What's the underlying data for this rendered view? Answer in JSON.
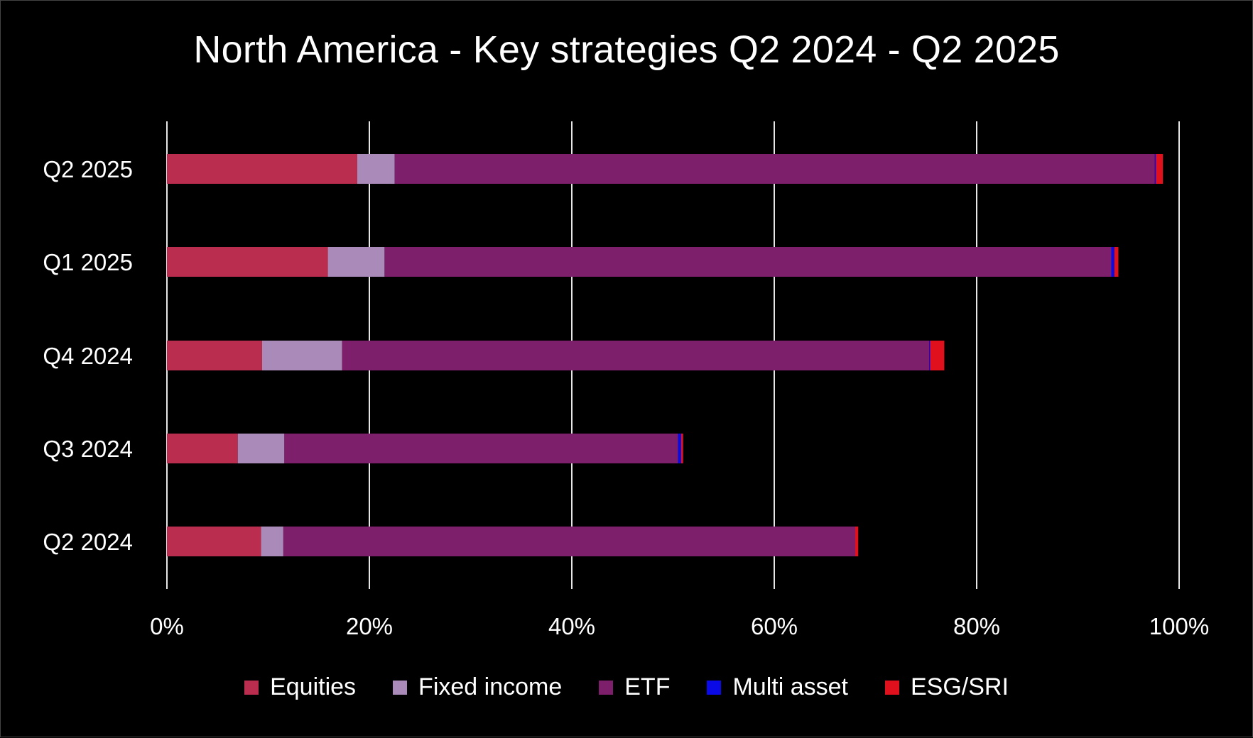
{
  "chart_data": {
    "type": "bar",
    "orientation": "horizontal",
    "stacked": true,
    "title": "North America - Key strategies Q2 2024 - Q2 2025",
    "xlabel": "",
    "ylabel": "",
    "categories": [
      "Q2 2025",
      "Q1 2025",
      "Q4 2024",
      "Q3 2024",
      "Q2 2024"
    ],
    "xlim": [
      0,
      100
    ],
    "x_ticks": [
      "0%",
      "20%",
      "40%",
      "60%",
      "80%",
      "100%"
    ],
    "grid": "vertical",
    "legend_position": "bottom",
    "series": [
      {
        "name": "Equities",
        "color": "#BA2D4E",
        "values": [
          18.8,
          15.9,
          9.4,
          7.0,
          9.3
        ]
      },
      {
        "name": "Fixed income",
        "color": "#A98AB8",
        "values": [
          3.7,
          5.6,
          7.9,
          4.6,
          2.2
        ]
      },
      {
        "name": "ETF",
        "color": "#7E1F6B",
        "values": [
          75.1,
          71.8,
          58.0,
          38.9,
          56.5
        ]
      },
      {
        "name": "Multi asset",
        "color": "#0A0AE6",
        "values": [
          0.1,
          0.3,
          0.1,
          0.3,
          0.0
        ]
      },
      {
        "name": "ESG/SRI",
        "color": "#E0101C",
        "values": [
          0.7,
          0.4,
          1.4,
          0.2,
          0.3
        ]
      }
    ]
  }
}
